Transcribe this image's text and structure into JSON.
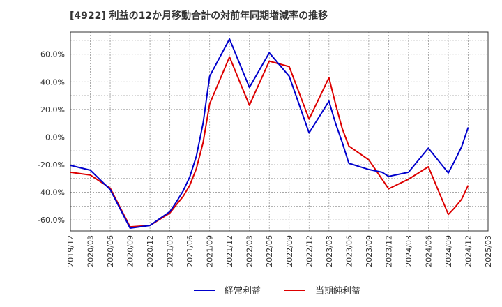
{
  "chart_data": {
    "type": "line",
    "title": "[4922]  利益の12か月移動合計の対前年同期増減率の推移",
    "xlabel": "",
    "ylabel": "",
    "ylim": [
      -68,
      76
    ],
    "yticks": [
      60,
      40,
      20,
      0,
      -20,
      -40,
      -60
    ],
    "ytick_labels": [
      "60.0%",
      "40.0%",
      "20.0%",
      "0.0%",
      "-20.0%",
      "-40.0%",
      "-60.0%"
    ],
    "grid": true,
    "legend_position": "bottom",
    "categories": [
      "2019/12",
      "2020/03",
      "2020/06",
      "2020/09",
      "2020/12",
      "2021/03",
      "2021/06",
      "2021/09",
      "2021/12",
      "2022/03",
      "2022/06",
      "2022/09",
      "2022/12",
      "2023/03",
      "2023/06",
      "2023/09",
      "2023/12",
      "2024/03",
      "2024/06",
      "2024/09",
      "2024/12",
      "2025/03"
    ],
    "series": [
      {
        "name": "経常利益",
        "color": "#0000cc",
        "x": [
          0,
          1,
          2,
          3,
          4,
          5,
          5.33,
          5.67,
          6,
          6.33,
          6.67,
          7,
          8,
          9,
          10,
          11,
          12,
          13,
          13.33,
          13.67,
          14,
          15,
          15.67,
          16,
          17,
          18,
          19,
          19.33,
          19.67,
          20
        ],
        "values": [
          -20.5,
          -24,
          -38,
          -66,
          -64,
          -54,
          -47,
          -39,
          -29,
          -14,
          10,
          44,
          71,
          36,
          61,
          44,
          3,
          26,
          10,
          -4,
          -19,
          -23.5,
          -25.5,
          -28.5,
          -25.5,
          -8,
          -26,
          -17,
          -7,
          7
        ]
      },
      {
        "name": "当期純利益",
        "color": "#dd0000",
        "x": [
          0,
          1,
          2,
          3,
          4,
          5,
          5.33,
          5.67,
          6,
          6.33,
          6.67,
          7,
          8,
          9,
          10,
          11,
          12,
          13,
          13.33,
          13.67,
          14,
          15,
          16,
          17,
          18,
          19,
          19.33,
          19.67,
          20
        ],
        "values": [
          -25.5,
          -27.5,
          -37,
          -65,
          -64,
          -55,
          -49,
          -43,
          -35,
          -23,
          -4,
          24,
          58,
          23,
          55,
          51,
          13,
          43,
          24,
          6,
          -6.5,
          -16.5,
          -37.5,
          -30.5,
          -21.5,
          -56,
          -51,
          -45,
          -35
        ]
      }
    ]
  }
}
